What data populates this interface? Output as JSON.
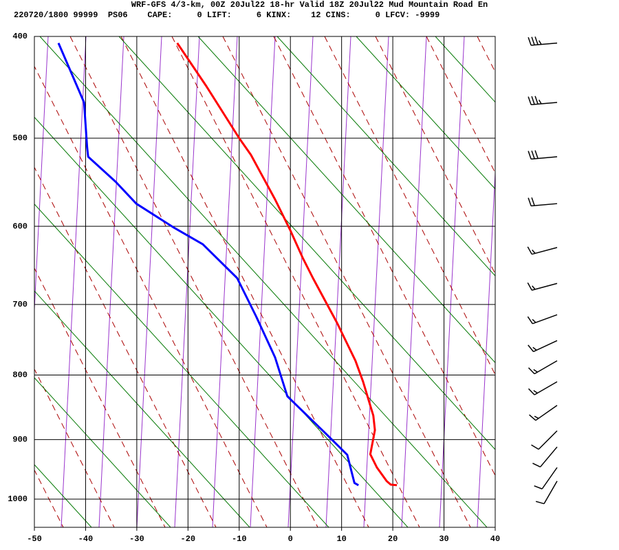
{
  "chart_data": {
    "type": "skewt",
    "title": "WRF-GFS 4/3-km, 00Z 20Jul22 18-hr Valid 18Z 20Jul22 Mud Mountain Road En",
    "subtitle": "220720/1800 99999  PS06    CAPE:     0 LIFT:     6 KINX:    12 CINS:     0 LFCV: -9999",
    "xlim": [
      -50,
      40
    ],
    "xticks": [
      -50,
      -40,
      -30,
      -20,
      -10,
      0,
      10,
      20,
      30,
      40
    ],
    "ylim": [
      400,
      1050
    ],
    "yticks": [
      400,
      500,
      600,
      700,
      800,
      900,
      1000
    ],
    "grid": true,
    "series": [
      {
        "color": "#ff0000",
        "x": [
          -22.1,
          -16.4,
          -10.0,
          -7.7,
          -3.0,
          0.0,
          2.4,
          4.4,
          9.1,
          12.7,
          14.2,
          16.2,
          16.5,
          15.6,
          16.9,
          18.8,
          19.6,
          20.8
        ],
        "y": [
          406,
          447,
          500,
          518,
          568,
          605,
          639,
          665,
          725,
          779,
          810,
          862,
          885,
          924,
          946,
          969,
          975,
          976
        ]
      },
      {
        "color": "#0000ff",
        "x": [
          -45.3,
          -40.3,
          -39.7,
          -39.5,
          -34.1,
          -30.1,
          -22.9,
          -17.1,
          -10.4,
          -6.7,
          -3.0,
          -0.6,
          7.1,
          11.1,
          12.5,
          13.3
        ],
        "y": [
          406,
          463,
          510,
          520,
          548,
          573,
          601,
          622,
          665,
          716,
          774,
          832,
          892,
          925,
          972,
          976
        ]
      }
    ],
    "wind": {
      "pressure": [
        406,
        463,
        520,
        573,
        626,
        672,
        714,
        750,
        779,
        810,
        846,
        886,
        912,
        946,
        969
      ],
      "speed": [
        35,
        35,
        30,
        20,
        15,
        15,
        15,
        15,
        15,
        15,
        15,
        10,
        10,
        10,
        10
      ],
      "direction": [
        265,
        265,
        265,
        265,
        255,
        255,
        250,
        245,
        240,
        240,
        235,
        225,
        220,
        215,
        210
      ]
    }
  }
}
